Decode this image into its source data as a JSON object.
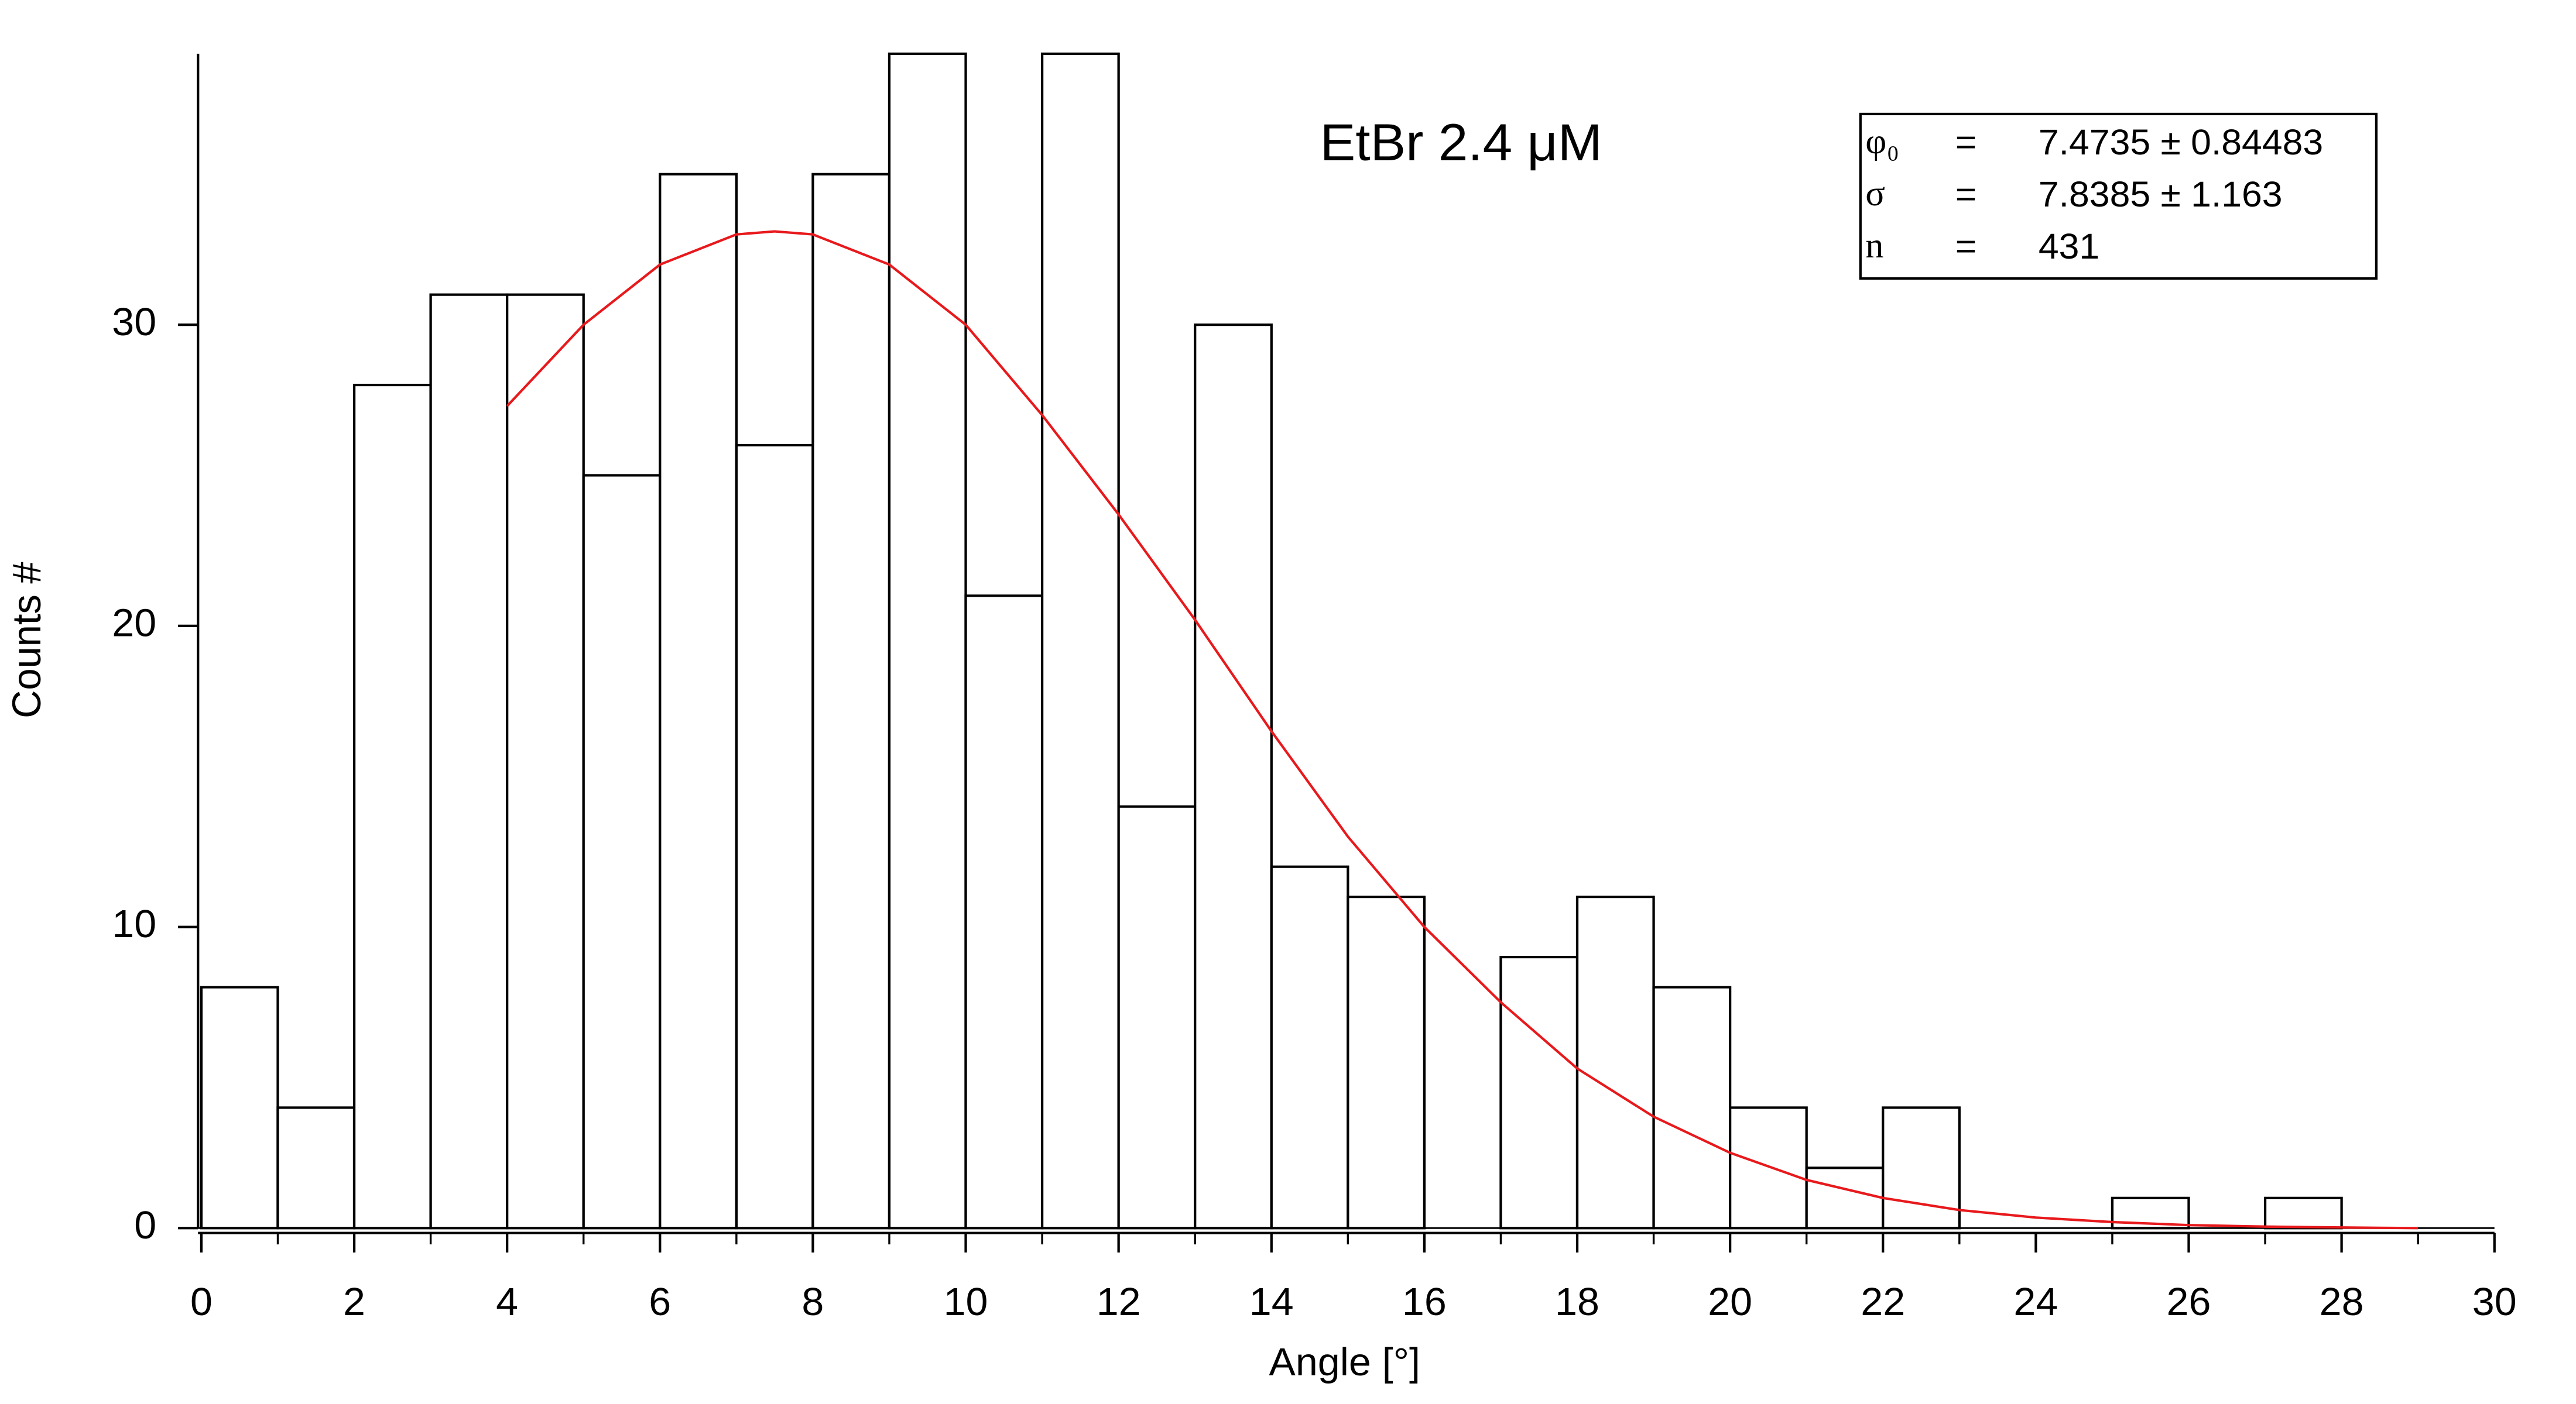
{
  "chart_data": {
    "type": "histogram",
    "title": "EtBr 2.4 μM",
    "x_label": "Angle [°]",
    "y_label": "Counts #",
    "bins": [
      0,
      1,
      2,
      3,
      4,
      5,
      6,
      7,
      8,
      9,
      10,
      11,
      12,
      13,
      14,
      15,
      16,
      17,
      18,
      19,
      20,
      21,
      22,
      23,
      24,
      25,
      26,
      27,
      28
    ],
    "values": [
      8,
      4,
      28,
      31,
      31,
      25,
      35,
      26,
      35,
      39,
      21,
      39,
      14,
      30,
      12,
      11,
      0,
      9,
      11,
      8,
      4,
      2,
      4,
      0,
      0,
      1,
      0,
      1
    ],
    "xlim": [
      0,
      30
    ],
    "ylim": [
      0,
      39
    ],
    "xticks": [
      0,
      2,
      4,
      6,
      8,
      10,
      12,
      14,
      16,
      18,
      20,
      22,
      24,
      26,
      28,
      30
    ],
    "xminorticks": [
      1,
      3,
      5,
      7,
      9,
      11,
      13,
      15,
      17,
      19,
      21,
      23,
      25,
      27,
      29
    ],
    "yticks": [
      0,
      10,
      20,
      30
    ],
    "fit": {
      "color": "#e8191c",
      "x": [
        4,
        5,
        6,
        7,
        7.5,
        8,
        9,
        10,
        11,
        12,
        13,
        14,
        15,
        16,
        17,
        18,
        19,
        20,
        21,
        22,
        23,
        24,
        25,
        26,
        27,
        28,
        29
      ],
      "values": [
        27.3,
        30,
        32,
        33,
        33.1,
        33,
        32,
        30,
        27,
        23.7,
        20.2,
        16.5,
        13,
        10,
        7.5,
        5.3,
        3.7,
        2.5,
        1.6,
        1,
        0.6,
        0.35,
        0.2,
        0.1,
        0.05,
        0.02,
        0
      ]
    },
    "fit_results": [
      [
        "φ₀",
        "=",
        "7.4735 ± 0.84483"
      ],
      [
        "σ",
        "=",
        "7.8385 ± 1.163"
      ],
      [
        "n",
        "=",
        "431"
      ]
    ]
  }
}
